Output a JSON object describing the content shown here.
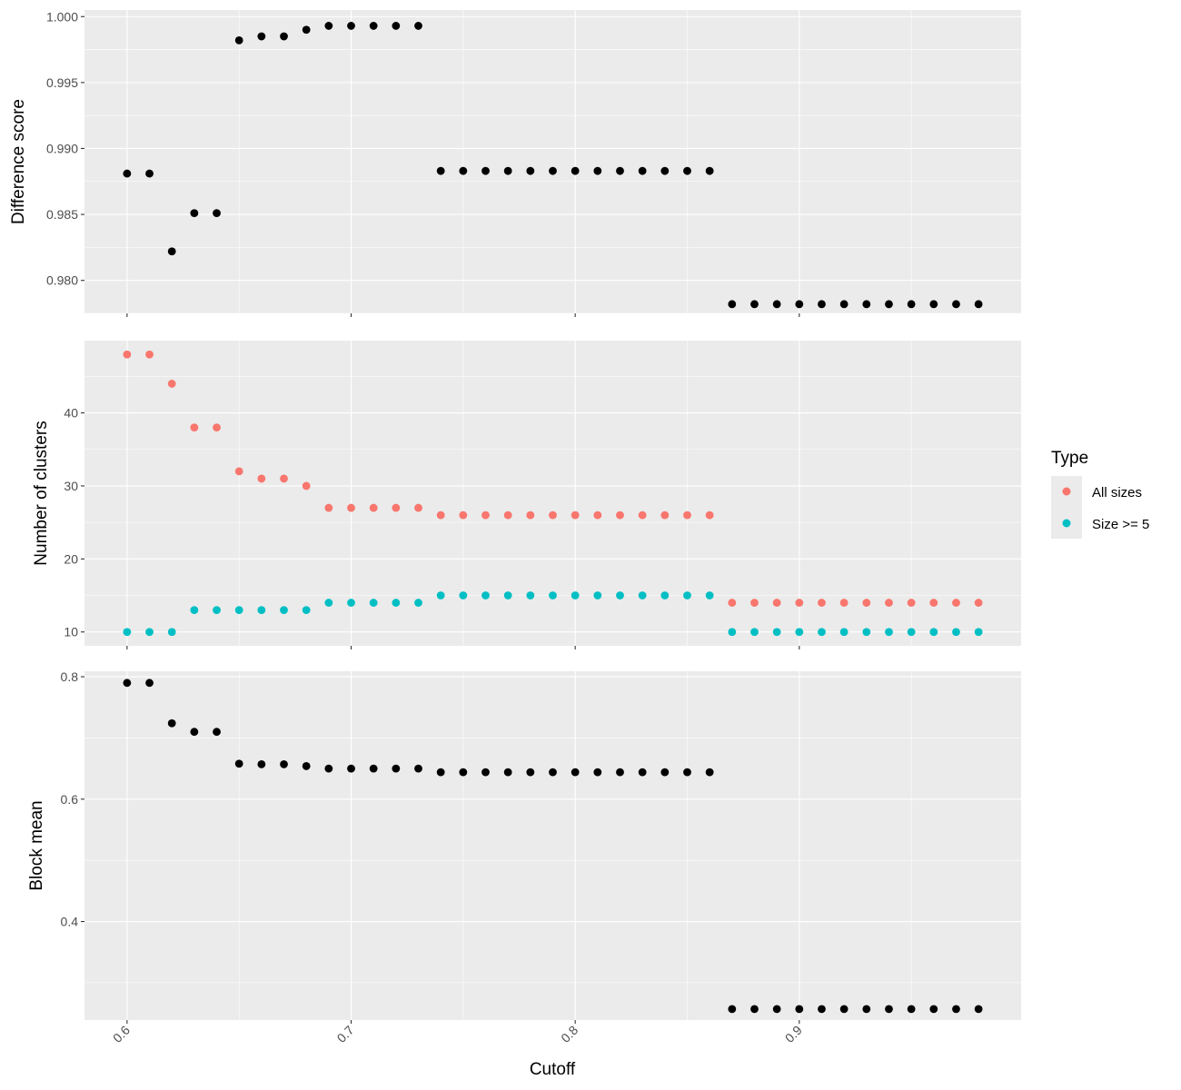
{
  "chart_data": {
    "type": "scatter",
    "x_axis": {
      "label": "Cutoff",
      "ticks": [
        "0.6",
        "0.7",
        "0.8",
        "0.9"
      ],
      "range": [
        0.581,
        0.999
      ]
    },
    "x": [
      0.6,
      0.61,
      0.62,
      0.63,
      0.64,
      0.65,
      0.66,
      0.67,
      0.68,
      0.69,
      0.7,
      0.71,
      0.72,
      0.73,
      0.74,
      0.75,
      0.76,
      0.77,
      0.78,
      0.79,
      0.8,
      0.81,
      0.82,
      0.83,
      0.84,
      0.85,
      0.86,
      0.87,
      0.88,
      0.89,
      0.9,
      0.91,
      0.92,
      0.93,
      0.94,
      0.95,
      0.96,
      0.97,
      0.98
    ],
    "panels": [
      {
        "ylabel": "Difference score",
        "ylim": [
          0.9775,
          1.0005
        ],
        "yticks": [
          "0.980",
          "0.985",
          "0.990",
          "0.995",
          "1.000"
        ],
        "series": [
          {
            "color": "#000000",
            "values": [
              0.9881,
              0.9881,
              0.9822,
              0.9851,
              0.9851,
              0.9982,
              0.9985,
              0.9985,
              0.999,
              0.9993,
              0.9993,
              0.9993,
              0.9993,
              0.9993,
              0.9883,
              0.9883,
              0.9883,
              0.9883,
              0.9883,
              0.9883,
              0.9883,
              0.9883,
              0.9883,
              0.9883,
              0.9883,
              0.9883,
              0.9883,
              0.9782,
              0.9782,
              0.9782,
              0.9782,
              0.9782,
              0.9782,
              0.9782,
              0.9782,
              0.9782,
              0.9782,
              0.9782,
              0.9782
            ]
          }
        ]
      },
      {
        "ylabel": "Number of clusters",
        "ylim": [
          8.1,
          49.9
        ],
        "yticks": [
          "10",
          "20",
          "30",
          "40"
        ],
        "series": [
          {
            "name": "All sizes",
            "color": "#F8766D",
            "values": [
              48,
              48,
              44,
              38,
              38,
              32,
              31,
              31,
              30,
              27,
              27,
              27,
              27,
              27,
              26,
              26,
              26,
              26,
              26,
              26,
              26,
              26,
              26,
              26,
              26,
              26,
              26,
              14,
              14,
              14,
              14,
              14,
              14,
              14,
              14,
              14,
              14,
              14,
              14
            ]
          },
          {
            "name": "Size >= 5",
            "color": "#00BFC4",
            "values": [
              10,
              10,
              10,
              13,
              13,
              13,
              13,
              13,
              13,
              14,
              14,
              14,
              14,
              14,
              15,
              15,
              15,
              15,
              15,
              15,
              15,
              15,
              15,
              15,
              15,
              15,
              15,
              10,
              10,
              10,
              10,
              10,
              10,
              10,
              10,
              10,
              10,
              10,
              10
            ]
          }
        ]
      },
      {
        "ylabel": "Block mean",
        "ylim": [
          0.239,
          0.809
        ],
        "yticks": [
          "0.4",
          "0.6",
          "0.8"
        ],
        "series": [
          {
            "color": "#000000",
            "values": [
              0.79,
              0.79,
              0.724,
              0.71,
              0.71,
              0.658,
              0.657,
              0.657,
              0.654,
              0.65,
              0.65,
              0.65,
              0.65,
              0.65,
              0.644,
              0.644,
              0.644,
              0.644,
              0.644,
              0.644,
              0.644,
              0.644,
              0.644,
              0.644,
              0.644,
              0.644,
              0.644,
              0.257,
              0.257,
              0.257,
              0.257,
              0.257,
              0.257,
              0.257,
              0.257,
              0.257,
              0.257,
              0.257,
              0.257
            ]
          }
        ]
      }
    ],
    "legend": {
      "title": "Type",
      "placement": "right",
      "entries": [
        {
          "label": "All sizes",
          "color": "#F8766D"
        },
        {
          "label": "Size >= 5",
          "color": "#00BFC4"
        }
      ]
    },
    "grid": true,
    "background": "#EBEBEB"
  }
}
